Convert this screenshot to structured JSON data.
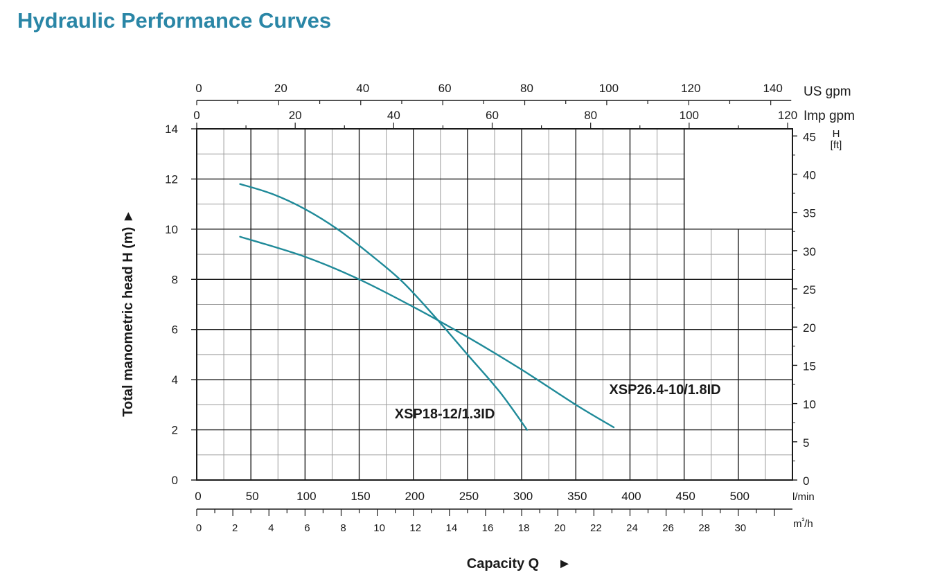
{
  "page": {
    "title": "Hydraulic Performance Curves"
  },
  "chart_data": {
    "type": "line",
    "title": "Hydraulic Performance Curves",
    "xlabel": "Capacity Q",
    "xlabel_arrow": "►",
    "ylabel": "Total manometric head H (m)",
    "ylabel_arrow": "►",
    "x_unit": "l/min",
    "xlim": [
      0,
      550
    ],
    "ylim": [
      0,
      14
    ],
    "grid": true,
    "x_ticks": [
      0,
      50,
      100,
      150,
      200,
      250,
      300,
      350,
      400,
      450,
      500
    ],
    "y_ticks": [
      0,
      2,
      4,
      6,
      8,
      10,
      12,
      14
    ],
    "secondary_axes": {
      "top_us_gpm": {
        "unit": "US gpm",
        "ticks": [
          0,
          20,
          40,
          60,
          80,
          100,
          120,
          140
        ]
      },
      "top_imp_gpm": {
        "unit": "Imp gpm",
        "ticks": [
          0,
          20,
          40,
          60,
          80,
          100,
          120
        ]
      },
      "bottom_m3h": {
        "unit": "m³/h",
        "ticks": [
          0,
          2,
          4,
          6,
          8,
          10,
          12,
          14,
          16,
          18,
          20,
          22,
          24,
          26,
          28,
          30
        ]
      },
      "right_ft": {
        "unit_line1": "H",
        "unit_line2": "[ft]",
        "ticks": [
          0,
          5,
          10,
          15,
          20,
          25,
          30,
          35,
          40,
          45
        ]
      }
    },
    "series": [
      {
        "name": "XSP18-12/1.3ID",
        "color": "#1f8a99",
        "x": [
          40,
          70,
          100,
          130,
          160,
          190,
          220,
          250,
          280,
          305
        ],
        "y": [
          11.8,
          11.4,
          10.8,
          10.0,
          9.0,
          7.9,
          6.5,
          5.0,
          3.5,
          2.0
        ]
      },
      {
        "name": "XSP26.4-10/1.8ID",
        "color": "#1f8a99",
        "x": [
          40,
          100,
          150,
          200,
          250,
          300,
          350,
          385
        ],
        "y": [
          9.7,
          8.9,
          8.0,
          6.9,
          5.7,
          4.4,
          3.0,
          2.1
        ]
      }
    ]
  }
}
